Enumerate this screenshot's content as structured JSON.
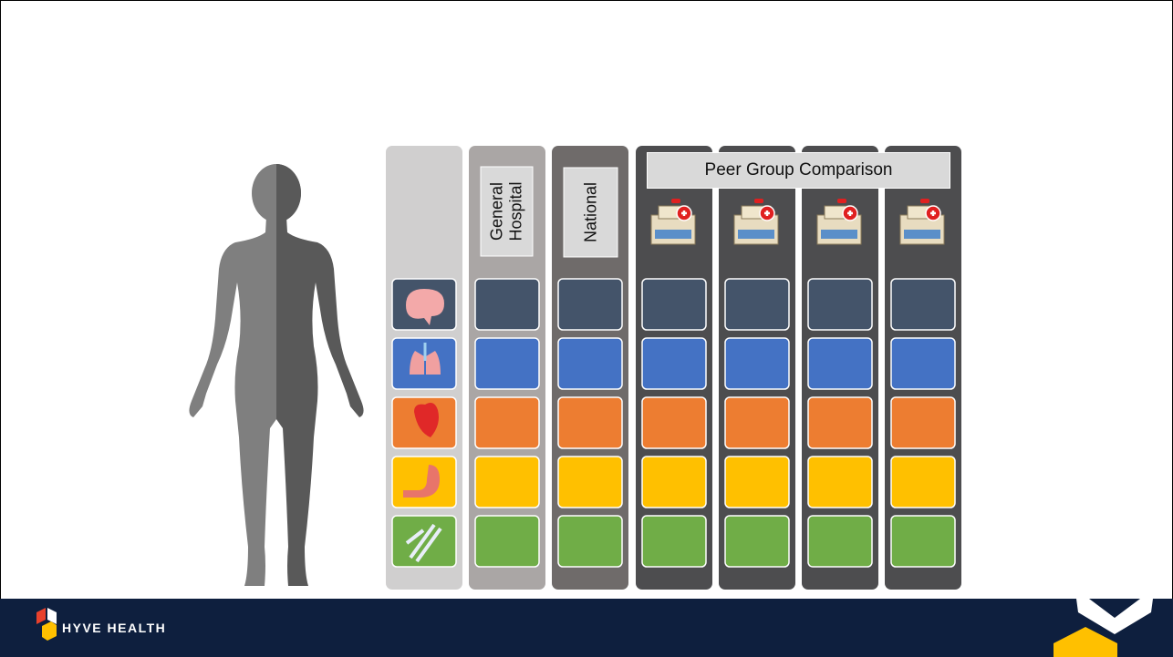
{
  "labels": {
    "general_hospital": "General Hospital",
    "national": "National",
    "peer_group": "Peer Group Comparison"
  },
  "footer": {
    "brand": "HYVE HEALTH"
  }
}
